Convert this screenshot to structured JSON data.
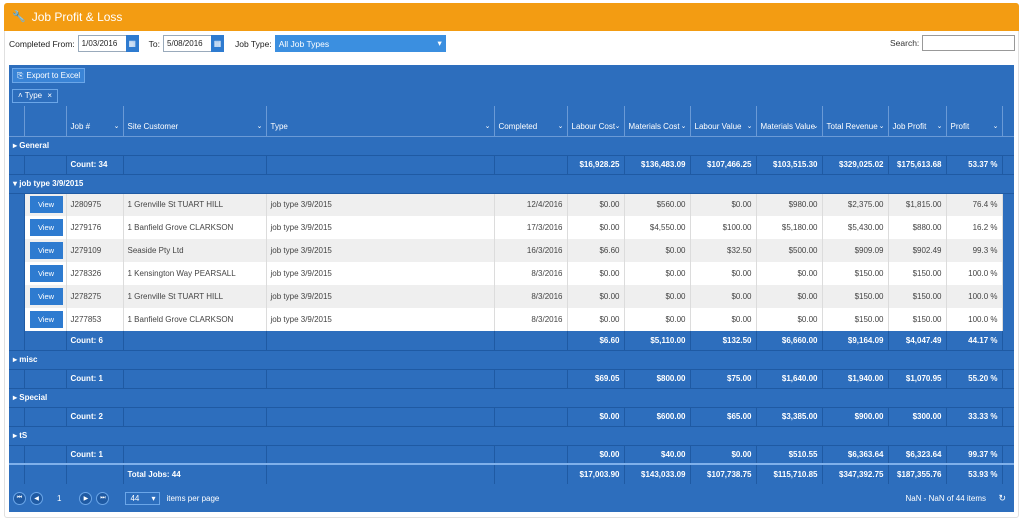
{
  "header": {
    "title": "Job Profit & Loss"
  },
  "filters": {
    "completed_from_label": "Completed From:",
    "completed_from": "1/03/2016",
    "to_label": "To:",
    "to": "5/08/2016",
    "job_type_label": "Job Type:",
    "job_type": "All Job Types",
    "search_label": "Search:"
  },
  "toolbar": {
    "export_label": "Export to Excel"
  },
  "grouping": {
    "chip": "Type"
  },
  "columns": [
    "Job #",
    "Site Customer",
    "Type",
    "Completed",
    "Labour Cost",
    "Materials Cost",
    "Labour Value",
    "Materials Value",
    "Total Revenue",
    "Job Profit",
    "Profit"
  ],
  "groups": [
    {
      "name": "General",
      "count": "Count: 34",
      "totals": [
        "$16,928.25",
        "$136,483.09",
        "$107,466.25",
        "$103,515.30",
        "$329,025.02",
        "$175,613.68",
        "53.37 %"
      ],
      "rows": []
    },
    {
      "name": "job type 3/9/2015",
      "count": "Count: 6",
      "totals": [
        "$6.60",
        "$5,110.00",
        "$132.50",
        "$6,660.00",
        "$9,164.09",
        "$4,047.49",
        "44.17 %"
      ],
      "rows": [
        [
          "J280975",
          "1 Grenville St TUART HILL",
          "job type 3/9/2015",
          "12/4/2016",
          "$0.00",
          "$560.00",
          "$0.00",
          "$980.00",
          "$2,375.00",
          "$1,815.00",
          "76.4 %"
        ],
        [
          "J279176",
          "1 Banfield Grove CLARKSON",
          "job type 3/9/2015",
          "17/3/2016",
          "$0.00",
          "$4,550.00",
          "$100.00",
          "$5,180.00",
          "$5,430.00",
          "$880.00",
          "16.2 %"
        ],
        [
          "J279109",
          "Seaside Pty Ltd",
          "job type 3/9/2015",
          "16/3/2016",
          "$6.60",
          "$0.00",
          "$32.50",
          "$500.00",
          "$909.09",
          "$902.49",
          "99.3 %"
        ],
        [
          "J278326",
          "1 Kensington Way PEARSALL",
          "job type 3/9/2015",
          "8/3/2016",
          "$0.00",
          "$0.00",
          "$0.00",
          "$0.00",
          "$150.00",
          "$150.00",
          "100.0 %"
        ],
        [
          "J278275",
          "1 Grenville St TUART HILL",
          "job type 3/9/2015",
          "8/3/2016",
          "$0.00",
          "$0.00",
          "$0.00",
          "$0.00",
          "$150.00",
          "$150.00",
          "100.0 %"
        ],
        [
          "J277853",
          "1 Banfield Grove CLARKSON",
          "job type 3/9/2015",
          "8/3/2016",
          "$0.00",
          "$0.00",
          "$0.00",
          "$0.00",
          "$150.00",
          "$150.00",
          "100.0 %"
        ]
      ]
    },
    {
      "name": "misc",
      "count": "Count: 1",
      "totals": [
        "$69.05",
        "$800.00",
        "$75.00",
        "$1,640.00",
        "$1,940.00",
        "$1,070.95",
        "55.20 %"
      ],
      "rows": []
    },
    {
      "name": "Special",
      "count": "Count: 2",
      "totals": [
        "$0.00",
        "$600.00",
        "$65.00",
        "$3,385.00",
        "$900.00",
        "$300.00",
        "33.33 %"
      ],
      "rows": []
    },
    {
      "name": "tS",
      "count": "Count: 1",
      "totals": [
        "$0.00",
        "$40.00",
        "$0.00",
        "$510.55",
        "$6,363.64",
        "$6,323.64",
        "99.37 %"
      ],
      "rows": []
    }
  ],
  "view_label": "View",
  "grand_total": {
    "label": "Total Jobs: 44",
    "values": [
      "$17,003.90",
      "$143,033.09",
      "$107,738.75",
      "$115,710.85",
      "$347,392.75",
      "$187,355.76",
      "53.93 %"
    ]
  },
  "pager": {
    "page": "1",
    "page_size": "44",
    "items_per_page": "items per page",
    "info": "NaN - NaN of 44 items"
  }
}
